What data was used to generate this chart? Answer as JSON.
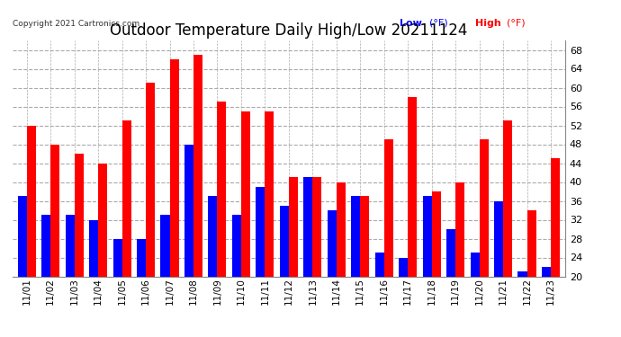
{
  "title": "Outdoor Temperature Daily High/Low 20211124",
  "copyright": "Copyright 2021 Cartronics.com",
  "legend_low": "Low",
  "legend_high": "High",
  "legend_unit": "(°F)",
  "ylim": [
    20.0,
    70.0
  ],
  "yticks": [
    20.0,
    24.0,
    28.0,
    32.0,
    36.0,
    40.0,
    44.0,
    48.0,
    52.0,
    56.0,
    60.0,
    64.0,
    68.0
  ],
  "dates": [
    "11/01",
    "11/02",
    "11/03",
    "11/04",
    "11/05",
    "11/06",
    "11/07",
    "11/08",
    "11/09",
    "11/10",
    "11/11",
    "11/12",
    "11/13",
    "11/14",
    "11/15",
    "11/16",
    "11/17",
    "11/18",
    "11/19",
    "11/20",
    "11/21",
    "11/22",
    "11/23"
  ],
  "highs": [
    52.0,
    48.0,
    46.0,
    44.0,
    53.0,
    61.0,
    66.0,
    67.0,
    57.0,
    55.0,
    55.0,
    41.0,
    41.0,
    40.0,
    37.0,
    49.0,
    58.0,
    38.0,
    40.0,
    49.0,
    53.0,
    34.0,
    45.0
  ],
  "lows": [
    37.0,
    33.0,
    33.0,
    32.0,
    28.0,
    28.0,
    33.0,
    48.0,
    37.0,
    33.0,
    39.0,
    35.0,
    41.0,
    34.0,
    37.0,
    25.0,
    24.0,
    37.0,
    30.0,
    25.0,
    36.0,
    21.0,
    22.0
  ],
  "high_color": "#ff0000",
  "low_color": "#0000ff",
  "background_color": "#ffffff",
  "grid_color": "#aaaaaa",
  "title_fontsize": 12,
  "bar_width": 0.38
}
